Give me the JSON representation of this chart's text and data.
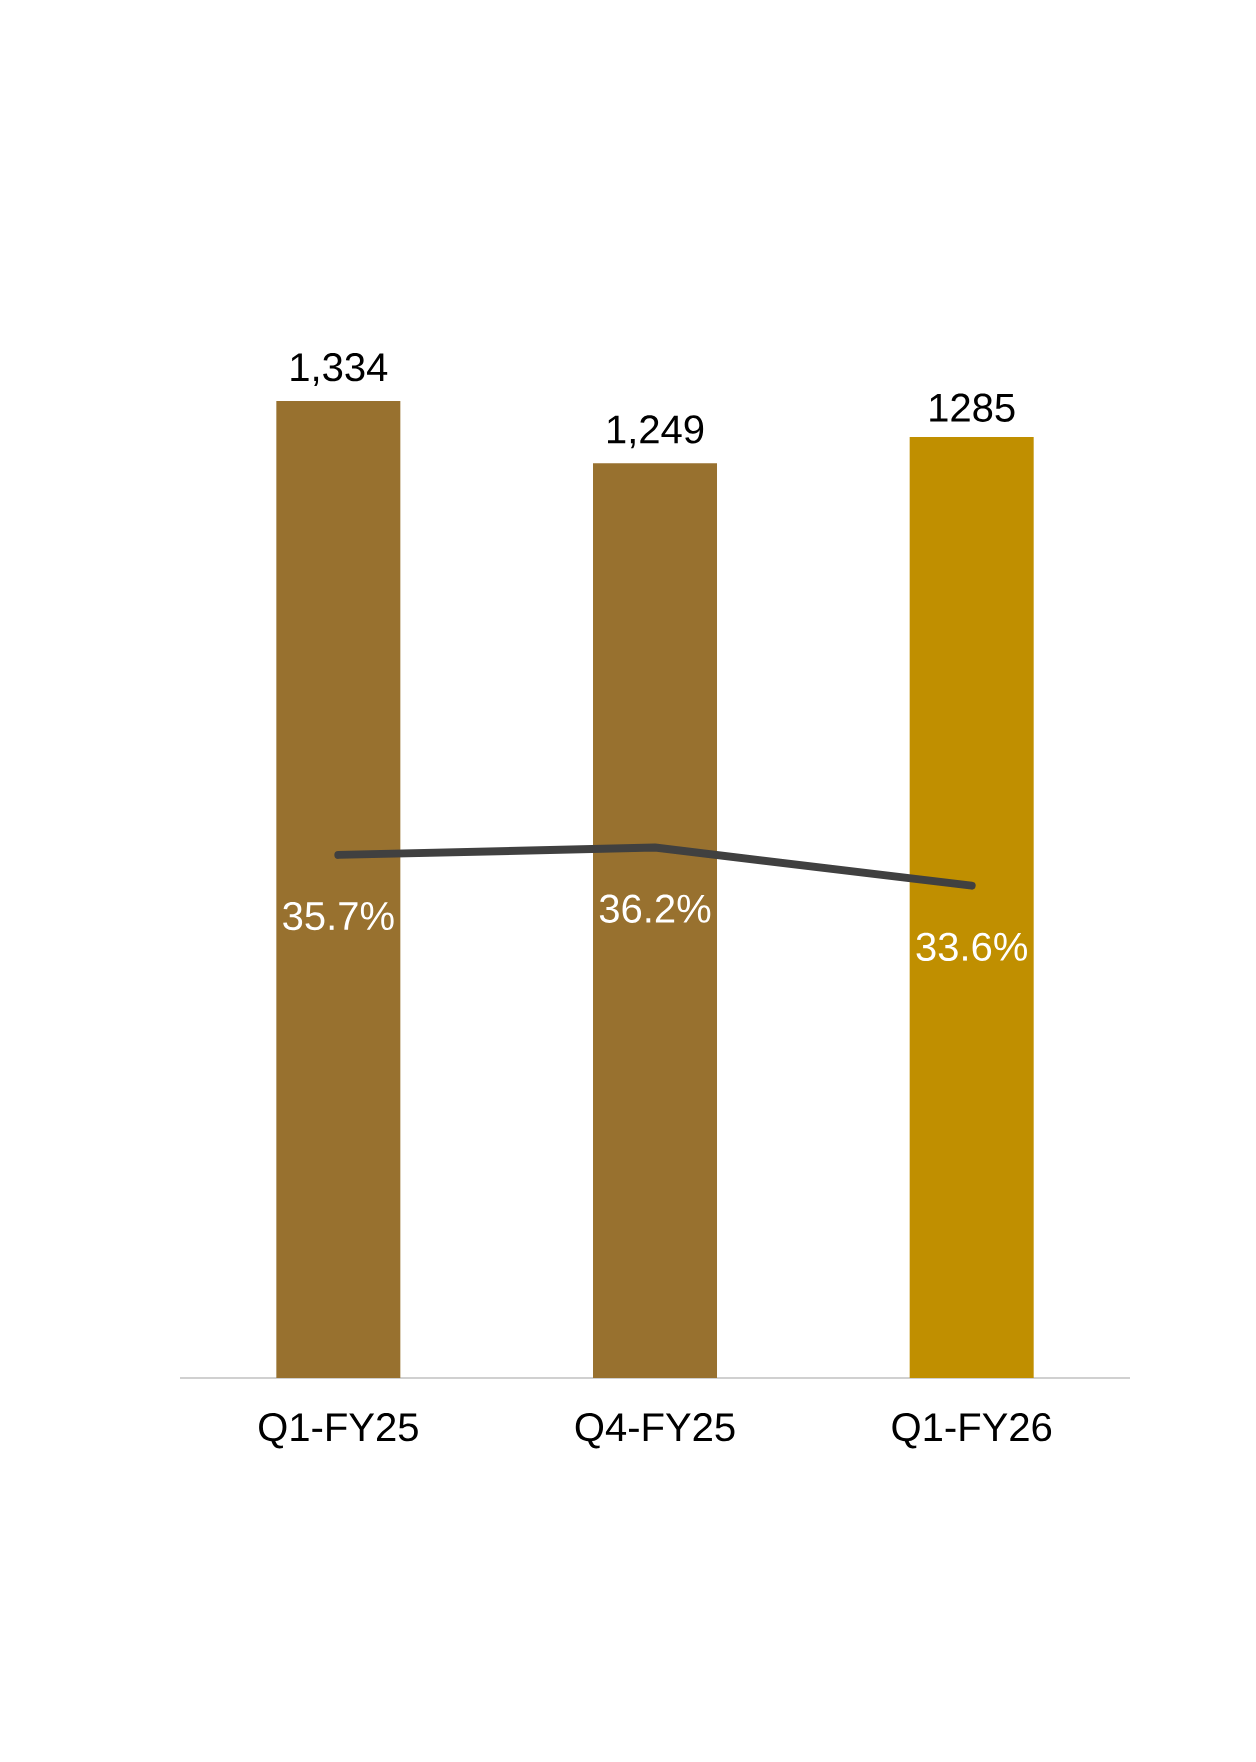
{
  "chart_data": {
    "type": "bar",
    "categories": [
      "Q1-FY25",
      "Q4-FY25",
      "Q1-FY26"
    ],
    "series": [
      {
        "colors": [
          "#98712f",
          "#98712f",
          "#c08f00"
        ],
        "values": [
          1334,
          1249,
          1285
        ],
        "value_labels": [
          "1,334",
          "1,249",
          "1285"
        ]
      },
      {
        "type": "line",
        "axis": "y2",
        "color": "#404040",
        "values": [
          35.7,
          36.2,
          33.6
        ],
        "value_labels": [
          "35.7%",
          "36.2%",
          "33.6%"
        ]
      }
    ]
  }
}
